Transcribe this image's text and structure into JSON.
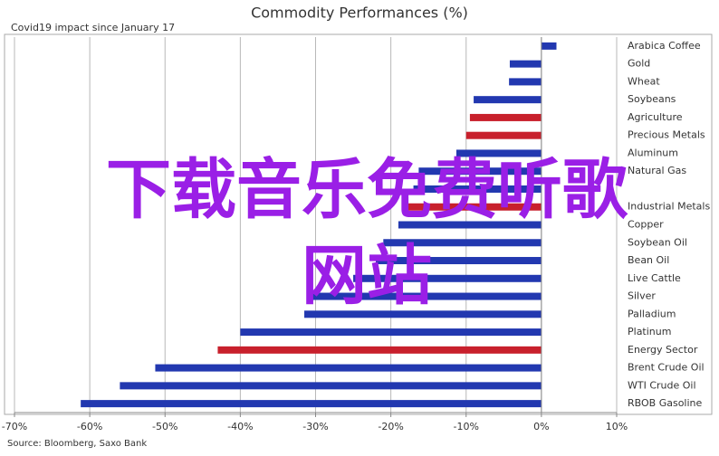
{
  "chart_data": {
    "type": "barh",
    "title": "Commodity Performances (%)",
    "subtitle": "Covid19 impact since January 17",
    "source": "Source: Bloomberg, Saxo Bank",
    "watermark": [
      "下载音乐免费听歌",
      "网站"
    ],
    "categories": [
      "Arabica Coffee",
      "Gold",
      "Wheat",
      "Soybeans",
      "Agriculture",
      "Precious Metals",
      "Aluminum",
      "Natural Gas",
      null,
      "Industrial Metals",
      "Copper",
      "Soybean Oil",
      "Bean Oil",
      "Live Cattle",
      "Silver",
      "Palladium",
      "Platinum",
      "Energy Sector",
      "Brent Crude Oil",
      "WTI Crude Oil",
      "RBOB Gasoline"
    ],
    "values": [
      2,
      -4.2,
      -4.3,
      -9,
      -9.5,
      -10,
      -11.3,
      -16.3,
      -17,
      -18,
      -19,
      -21,
      -22,
      -25,
      -30.5,
      -31.5,
      -40,
      -43,
      -51.3,
      -56,
      -61.2
    ],
    "colors": [
      "#2238b0",
      "#2238b0",
      "#2238b0",
      "#2238b0",
      "#c8202c",
      "#c8202c",
      "#2238b0",
      "#2238b0",
      "#2238b0",
      "#c8202c",
      "#2238b0",
      "#2238b0",
      "#2238b0",
      "#2238b0",
      "#2238b0",
      "#2238b0",
      "#2238b0",
      "#c8202c",
      "#2238b0",
      "#2238b0",
      "#2238b0"
    ],
    "xlim": [
      -70,
      10
    ],
    "xticks": [
      {
        "value": -70,
        "label": "-70%"
      },
      {
        "value": -60,
        "label": "-60%"
      },
      {
        "value": -50,
        "label": "-50%"
      },
      {
        "value": -40,
        "label": "-40%"
      },
      {
        "value": -30,
        "label": "-30%"
      },
      {
        "value": -20,
        "label": "-20%"
      },
      {
        "value": -10,
        "label": "-10%"
      },
      {
        "value": 0,
        "label": "0%"
      },
      {
        "value": 10,
        "label": "10%"
      }
    ],
    "grid": true
  }
}
